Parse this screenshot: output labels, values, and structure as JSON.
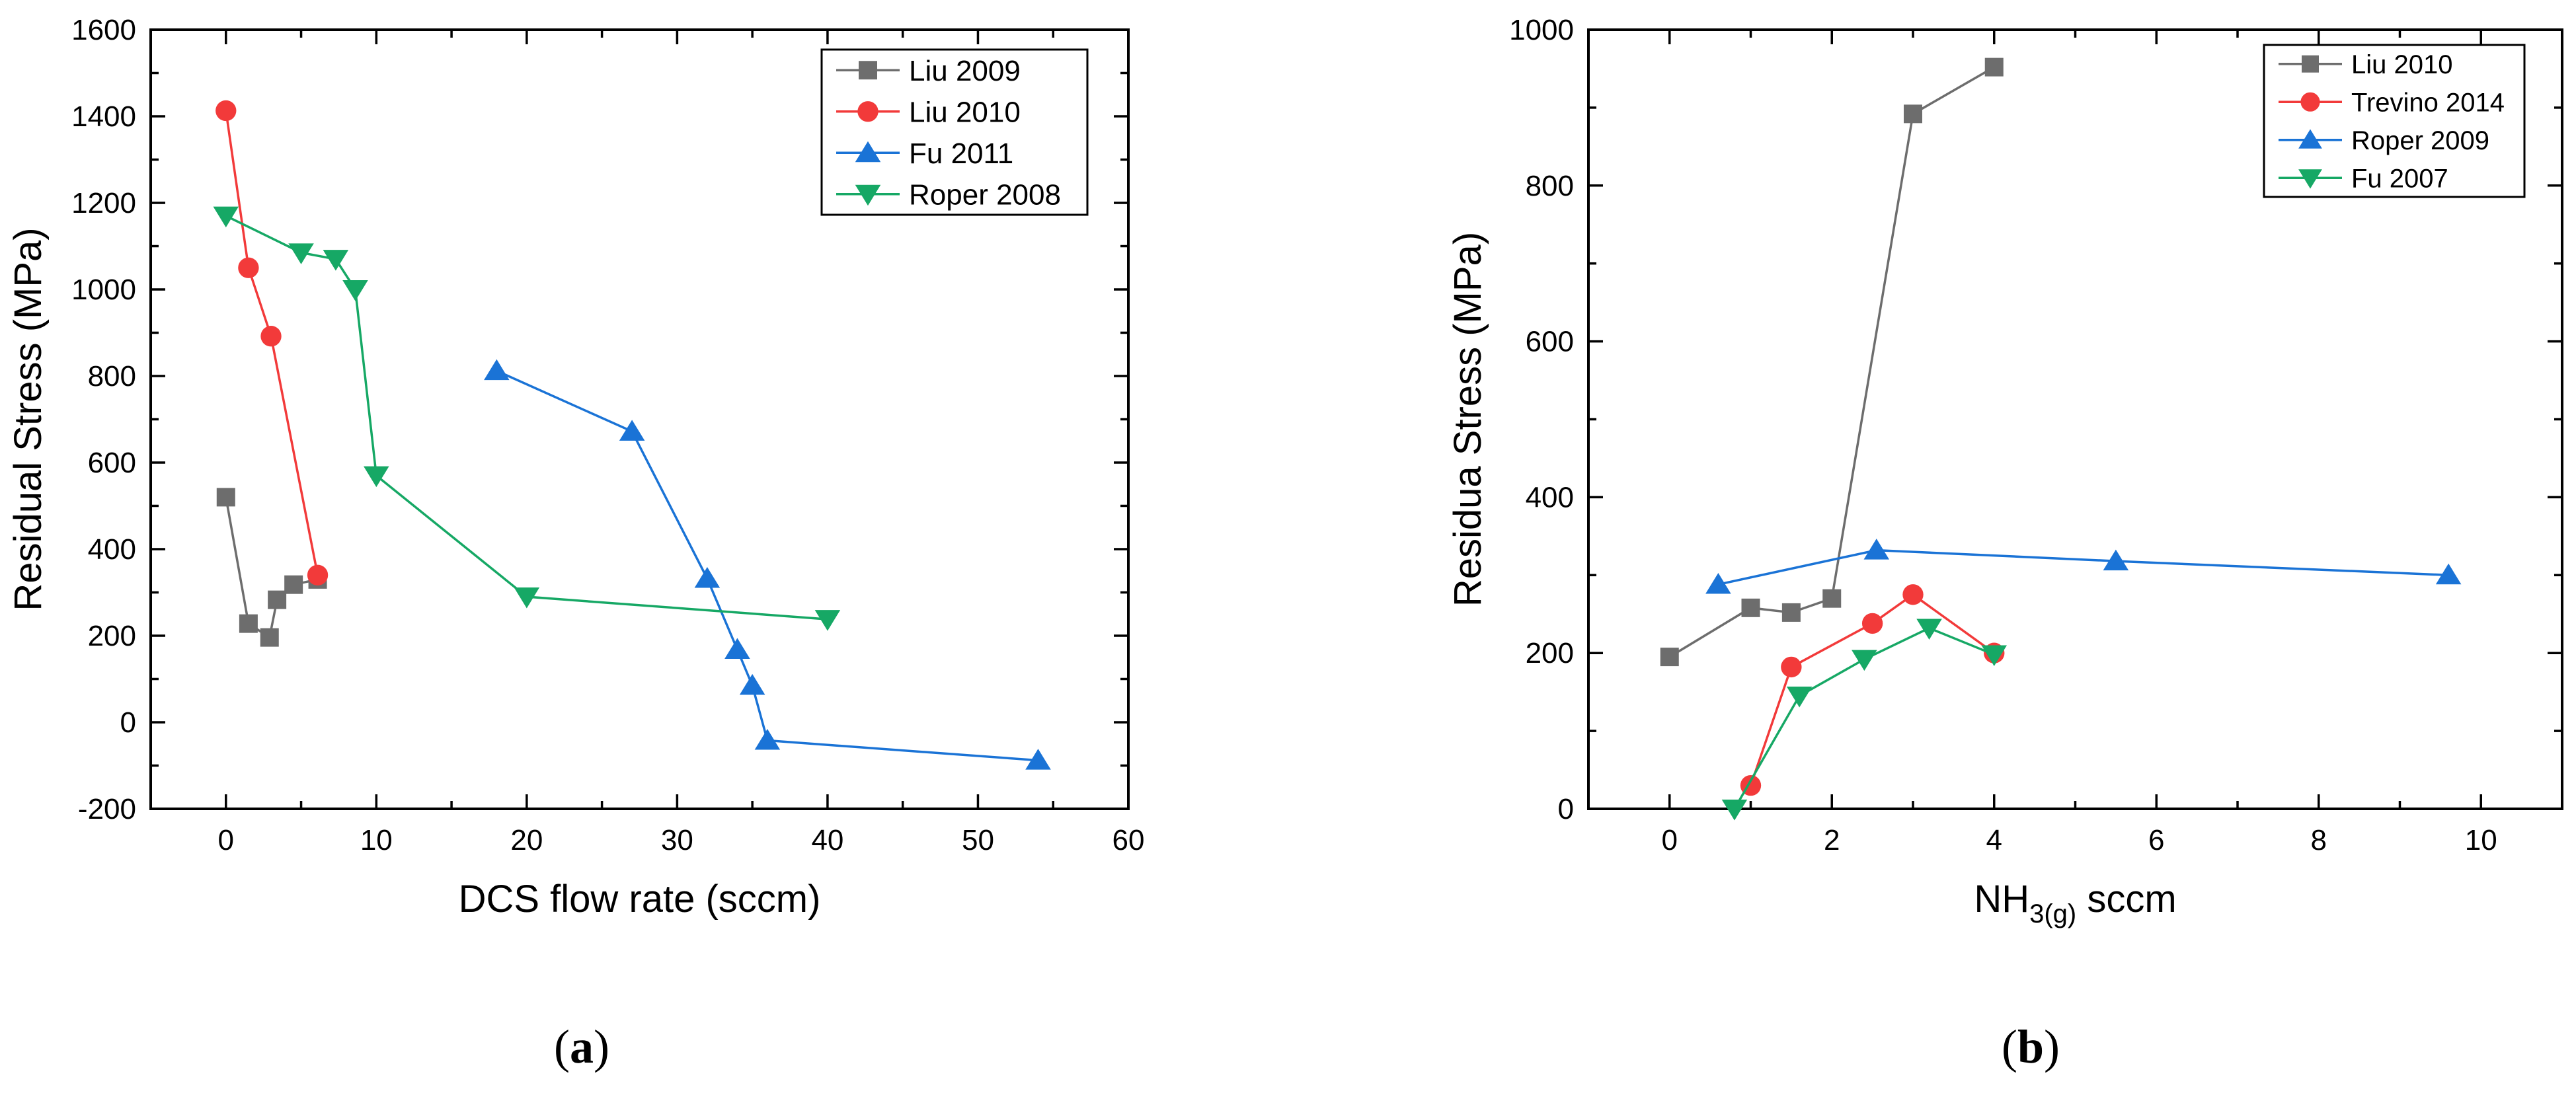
{
  "colors": {
    "gray": "#6d6d6d",
    "red": "#f23a3a",
    "blue": "#1a73d6",
    "green": "#16a865"
  },
  "panel_labels": [
    {
      "open": "(",
      "letter": "a",
      "close": ")"
    },
    {
      "open": "(",
      "letter": "b",
      "close": ")"
    }
  ],
  "chart_data": [
    {
      "type": "line",
      "title": "",
      "xlabel": "DCS flow rate (sccm)",
      "ylabel": "Residual Stress (MPa)",
      "xlim": [
        -5,
        60
      ],
      "ylim": [
        -200,
        1600
      ],
      "xticks": [
        0,
        10,
        20,
        30,
        40,
        50,
        60
      ],
      "yticks": [
        -200,
        0,
        200,
        400,
        600,
        800,
        1000,
        1200,
        1400,
        1600
      ],
      "legend_position": "top-right",
      "series": [
        {
          "name": "Liu 2009",
          "color": "#6d6d6d",
          "marker": "square",
          "x": [
            0,
            1.5,
            2.9,
            3.4,
            4.5,
            6.1
          ],
          "y": [
            520,
            228,
            196,
            283,
            318,
            330
          ]
        },
        {
          "name": "Liu 2010",
          "color": "#f23a3a",
          "marker": "circle",
          "x": [
            0,
            1.5,
            3,
            6.1
          ],
          "y": [
            1413,
            1050,
            892,
            340
          ]
        },
        {
          "name": "Fu 2011",
          "color": "#1a73d6",
          "marker": "triangle-up",
          "x": [
            18,
            27,
            32,
            34,
            35,
            36,
            54
          ],
          "y": [
            812,
            672,
            332,
            168,
            85,
            -42,
            -88
          ]
        },
        {
          "name": "Roper 2008",
          "color": "#16a865",
          "marker": "triangle-down",
          "x": [
            0,
            5,
            7.3,
            8.6,
            10,
            20,
            40
          ],
          "y": [
            1170,
            1085,
            1070,
            1000,
            570,
            290,
            238
          ]
        }
      ]
    },
    {
      "type": "line",
      "title": "",
      "xlabel": {
        "main": "NH",
        "sub1": "3(g)",
        "rest": " sccm"
      },
      "ylabel": "Residua Stress (MPa)",
      "xlim": [
        -1,
        11
      ],
      "ylim": [
        0,
        1000
      ],
      "xticks": [
        0,
        2,
        4,
        6,
        8,
        10
      ],
      "yticks": [
        0,
        200,
        400,
        600,
        800,
        1000
      ],
      "legend_position": "top-right",
      "series": [
        {
          "name": "Liu 2010",
          "color": "#6d6d6d",
          "marker": "square",
          "x": [
            0,
            1,
            1.5,
            2,
            3,
            4
          ],
          "y": [
            195,
            258,
            252,
            270,
            892,
            952
          ]
        },
        {
          "name": "Trevino 2014",
          "color": "#f23a3a",
          "marker": "circle",
          "x": [
            1,
            1.5,
            2.5,
            3,
            4
          ],
          "y": [
            30,
            182,
            238,
            275,
            200
          ]
        },
        {
          "name": "Roper 2009",
          "color": "#1a73d6",
          "marker": "triangle-up",
          "x": [
            0.6,
            2.55,
            5.5,
            9.6
          ],
          "y": [
            288,
            332,
            318,
            300
          ]
        },
        {
          "name": "Fu 2007",
          "color": "#16a865",
          "marker": "triangle-down",
          "x": [
            0.8,
            1.6,
            2.4,
            3.2,
            4
          ],
          "y": [
            0,
            145,
            192,
            232,
            198
          ]
        }
      ]
    }
  ]
}
